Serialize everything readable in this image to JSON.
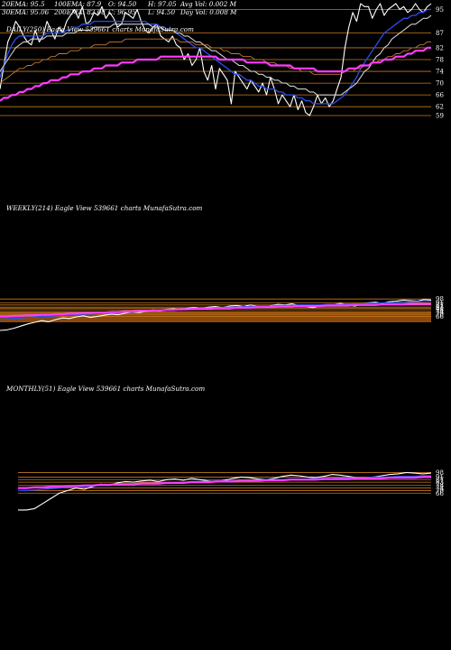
{
  "stats": {
    "ema20": "20EMA: 95.5",
    "ema100": "100EMA: 87.9",
    "open": "O: 94.50",
    "high": "H: 97.05",
    "avg_vol": "Avg Vol: 0.002  M",
    "ema30": "30EMA: 95.06",
    "ema200": "200EMA: 82.08",
    "close": "C: 96.95",
    "low": "L: 94.50",
    "day_vol": "Day Vol: 0.008 M"
  },
  "panels": {
    "daily": "DAILY(250) Eagle   View  539661 charts MunafaSutra.com",
    "weekly": "WEEKLY(214) Eagle   View  539661 charts MunafaSutra.com",
    "monthly": "MONTHLY(51) Eagle   View  539661 charts MunafaSutra.com"
  },
  "colors": {
    "price": "#ffffff",
    "ema20": "#2b4df0",
    "ema30": "#cfcfcf",
    "ema100": "#c07a3a",
    "ema200": "#ff3cff",
    "level": "#c87a1e",
    "volume": "#8b4a0c"
  },
  "chart_data": [
    {
      "type": "line",
      "panel": "daily",
      "ylim": [
        59,
        97
      ],
      "y_ticks": [
        95,
        87,
        82,
        78,
        74,
        70,
        66,
        62,
        59
      ],
      "series": [
        {
          "key": "price",
          "values": [
            68,
            76,
            84,
            87,
            91,
            89,
            86,
            84,
            83,
            88,
            84,
            86,
            91,
            88,
            85,
            89,
            87,
            91,
            93,
            95,
            92,
            96,
            90,
            91,
            94,
            93,
            96,
            92,
            94,
            92,
            89,
            90,
            94,
            93,
            92,
            95,
            91,
            88,
            87,
            89,
            90,
            86,
            85,
            84,
            86,
            83,
            82,
            78,
            80,
            76,
            78,
            82,
            74,
            71,
            76,
            68,
            75,
            73,
            71,
            63,
            74,
            72,
            70,
            68,
            71,
            69,
            67,
            70,
            66,
            72,
            68,
            63,
            66,
            64,
            62,
            66,
            61,
            64,
            60,
            59,
            62,
            66,
            63,
            65,
            62,
            64,
            68,
            72,
            82,
            89,
            94,
            91,
            97,
            96,
            96,
            92,
            95,
            97,
            93,
            95,
            96,
            97,
            95,
            96,
            94,
            95,
            97,
            95,
            94,
            96,
            97
          ]
        },
        {
          "key": "ema20",
          "values": [
            72,
            76,
            80,
            83,
            85,
            86,
            86,
            86,
            86,
            86,
            86,
            86,
            87,
            87,
            87,
            87,
            87,
            88,
            88,
            89,
            89,
            90,
            90,
            90,
            91,
            91,
            91,
            91,
            91,
            91,
            91,
            91,
            91,
            91,
            91,
            91,
            91,
            91,
            90,
            90,
            90,
            89,
            89,
            88,
            88,
            87,
            86,
            85,
            84,
            83,
            82,
            82,
            81,
            80,
            79,
            78,
            77,
            76,
            75,
            74,
            73,
            73,
            72,
            71,
            71,
            70,
            69,
            69,
            68,
            68,
            68,
            67,
            67,
            66,
            66,
            66,
            65,
            65,
            64,
            64,
            63,
            63,
            63,
            63,
            63,
            63,
            64,
            65,
            66,
            68,
            70,
            72,
            75,
            77,
            79,
            81,
            83,
            85,
            87,
            88,
            89,
            90,
            91,
            92,
            92,
            93,
            93,
            94,
            94,
            95,
            95
          ]
        },
        {
          "key": "ema30",
          "values": [
            74,
            76,
            78,
            80,
            82,
            83,
            84,
            84,
            85,
            85,
            85,
            85,
            86,
            86,
            86,
            86,
            86,
            87,
            87,
            87,
            88,
            88,
            88,
            88,
            89,
            89,
            89,
            89,
            89,
            90,
            90,
            90,
            90,
            90,
            90,
            90,
            90,
            90,
            90,
            89,
            89,
            89,
            88,
            88,
            88,
            87,
            87,
            86,
            86,
            85,
            84,
            84,
            83,
            82,
            81,
            81,
            80,
            79,
            78,
            78,
            77,
            76,
            76,
            75,
            74,
            74,
            73,
            73,
            72,
            72,
            71,
            71,
            70,
            70,
            69,
            69,
            68,
            68,
            68,
            67,
            67,
            66,
            66,
            66,
            66,
            66,
            66,
            66,
            67,
            68,
            69,
            70,
            72,
            74,
            75,
            77,
            79,
            80,
            82,
            83,
            85,
            86,
            87,
            88,
            89,
            90,
            90,
            91,
            92,
            92,
            93
          ]
        },
        {
          "key": "ema100",
          "values": [
            70,
            71,
            72,
            73,
            74,
            75,
            75,
            76,
            76,
            77,
            77,
            78,
            78,
            79,
            79,
            80,
            80,
            80,
            81,
            81,
            81,
            82,
            82,
            82,
            83,
            83,
            83,
            83,
            84,
            84,
            84,
            84,
            85,
            85,
            85,
            85,
            85,
            85,
            85,
            85,
            85,
            85,
            85,
            85,
            85,
            85,
            84,
            84,
            84,
            84,
            83,
            83,
            83,
            83,
            82,
            82,
            82,
            81,
            81,
            80,
            80,
            80,
            79,
            79,
            79,
            78,
            78,
            78,
            77,
            77,
            77,
            76,
            76,
            76,
            75,
            75,
            75,
            74,
            74,
            74,
            73,
            73,
            73,
            73,
            73,
            73,
            73,
            73,
            74,
            74,
            74,
            75,
            75,
            76,
            76,
            77,
            77,
            78,
            78,
            79,
            79,
            80,
            80,
            81,
            81,
            82,
            82,
            83,
            83,
            84,
            84
          ]
        },
        {
          "key": "ema200",
          "values": [
            64,
            65,
            65,
            66,
            66,
            67,
            67,
            68,
            68,
            69,
            69,
            70,
            70,
            71,
            71,
            71,
            72,
            72,
            73,
            73,
            73,
            74,
            74,
            74,
            75,
            75,
            75,
            76,
            76,
            76,
            76,
            77,
            77,
            77,
            77,
            78,
            78,
            78,
            78,
            78,
            78,
            79,
            79,
            79,
            79,
            79,
            79,
            79,
            79,
            79,
            79,
            79,
            79,
            79,
            79,
            79,
            78,
            78,
            78,
            78,
            78,
            78,
            78,
            77,
            77,
            77,
            77,
            77,
            77,
            76,
            76,
            76,
            76,
            76,
            76,
            75,
            75,
            75,
            75,
            75,
            75,
            74,
            74,
            74,
            74,
            74,
            74,
            74,
            74,
            75,
            75,
            75,
            76,
            76,
            76,
            77,
            77,
            77,
            78,
            78,
            78,
            79,
            79,
            79,
            80,
            80,
            81,
            81,
            81,
            82,
            82
          ]
        }
      ],
      "levels": [
        95,
        87,
        82,
        78,
        74,
        70,
        66,
        62,
        59
      ]
    },
    {
      "type": "line",
      "panel": "weekly",
      "ylim": [
        30,
        100
      ],
      "y_ticks": [
        98,
        91,
        87,
        83,
        81,
        78,
        74,
        70,
        66
      ],
      "series": [
        {
          "key": "price",
          "values": [
            40,
            41,
            44,
            48,
            52,
            55,
            58,
            56,
            60,
            63,
            62,
            65,
            67,
            64,
            66,
            68,
            70,
            69,
            72,
            74,
            73,
            75,
            78,
            76,
            79,
            80,
            78,
            81,
            82,
            80,
            83,
            84,
            82,
            85,
            86,
            84,
            87,
            85,
            83,
            86,
            88,
            87,
            89,
            86,
            84,
            82,
            85,
            87,
            88,
            90,
            87,
            85,
            88,
            91,
            92,
            90,
            93,
            94,
            96,
            95,
            94,
            97,
            96
          ]
        },
        {
          "key": "ema20",
          "values": [
            60,
            61,
            62,
            63,
            64,
            65,
            66,
            66,
            67,
            68,
            68,
            69,
            70,
            70,
            71,
            72,
            72,
            73,
            74,
            74,
            75,
            76,
            76,
            77,
            78,
            78,
            79,
            80,
            80,
            81,
            81,
            82,
            82,
            83,
            83,
            84,
            84,
            85,
            85,
            85,
            86,
            86,
            86,
            87,
            87,
            87,
            87,
            88,
            88,
            88,
            89,
            89,
            89,
            90,
            90,
            91,
            91,
            92,
            92,
            93,
            93,
            94,
            94
          ]
        },
        {
          "key": "ema200",
          "values": [
            66,
            66,
            67,
            67,
            68,
            68,
            69,
            69,
            70,
            70,
            71,
            71,
            72,
            72,
            73,
            73,
            74,
            74,
            75,
            75,
            76,
            76,
            77,
            77,
            78,
            78,
            79,
            79,
            80,
            80,
            80,
            81,
            81,
            81,
            82,
            82,
            82,
            83,
            83,
            83,
            84,
            84,
            84,
            85,
            85,
            85,
            85,
            86,
            86,
            86,
            86,
            87,
            87,
            87,
            87,
            88,
            88,
            88,
            88,
            89,
            89,
            89,
            89
          ]
        }
      ],
      "levels": [
        98,
        91,
        87,
        83,
        81,
        78,
        74,
        70,
        66
      ]
    },
    {
      "type": "line",
      "panel": "monthly",
      "ylim": [
        30,
        100
      ],
      "y_ticks": [
        98,
        91,
        87,
        83,
        78,
        74,
        70,
        66
      ],
      "series": [
        {
          "key": "price",
          "values": [
            40,
            40,
            42,
            50,
            58,
            66,
            70,
            74,
            72,
            76,
            80,
            78,
            82,
            84,
            83,
            85,
            86,
            84,
            87,
            88,
            86,
            89,
            87,
            85,
            84,
            86,
            89,
            91,
            90,
            88,
            87,
            89,
            92,
            94,
            93,
            91,
            90,
            92,
            95,
            94,
            92,
            90,
            88,
            91,
            93,
            95,
            96,
            98,
            97,
            96,
            97
          ]
        },
        {
          "key": "ema20",
          "values": [
            70,
            70,
            71,
            72,
            73,
            74,
            75,
            76,
            76,
            77,
            78,
            78,
            79,
            80,
            80,
            81,
            81,
            82,
            82,
            83,
            83,
            84,
            84,
            84,
            85,
            85,
            85,
            86,
            86,
            86,
            87,
            87,
            87,
            88,
            88,
            88,
            89,
            89,
            89,
            90,
            90,
            90,
            90,
            91,
            91,
            91,
            92,
            92,
            92,
            93,
            93
          ]
        },
        {
          "key": "ema200",
          "values": [
            74,
            74,
            75,
            75,
            76,
            76,
            77,
            77,
            78,
            78,
            79,
            79,
            80,
            80,
            80,
            81,
            81,
            81,
            82,
            82,
            82,
            83,
            83,
            83,
            84,
            84,
            84,
            85,
            85,
            85,
            86,
            86,
            86,
            87,
            87,
            87,
            87,
            88,
            88,
            88,
            88,
            89,
            89,
            89,
            89,
            90,
            90,
            90,
            90,
            91,
            91
          ]
        }
      ],
      "levels": [
        98,
        91,
        87,
        83,
        78,
        74,
        70,
        66
      ]
    }
  ]
}
